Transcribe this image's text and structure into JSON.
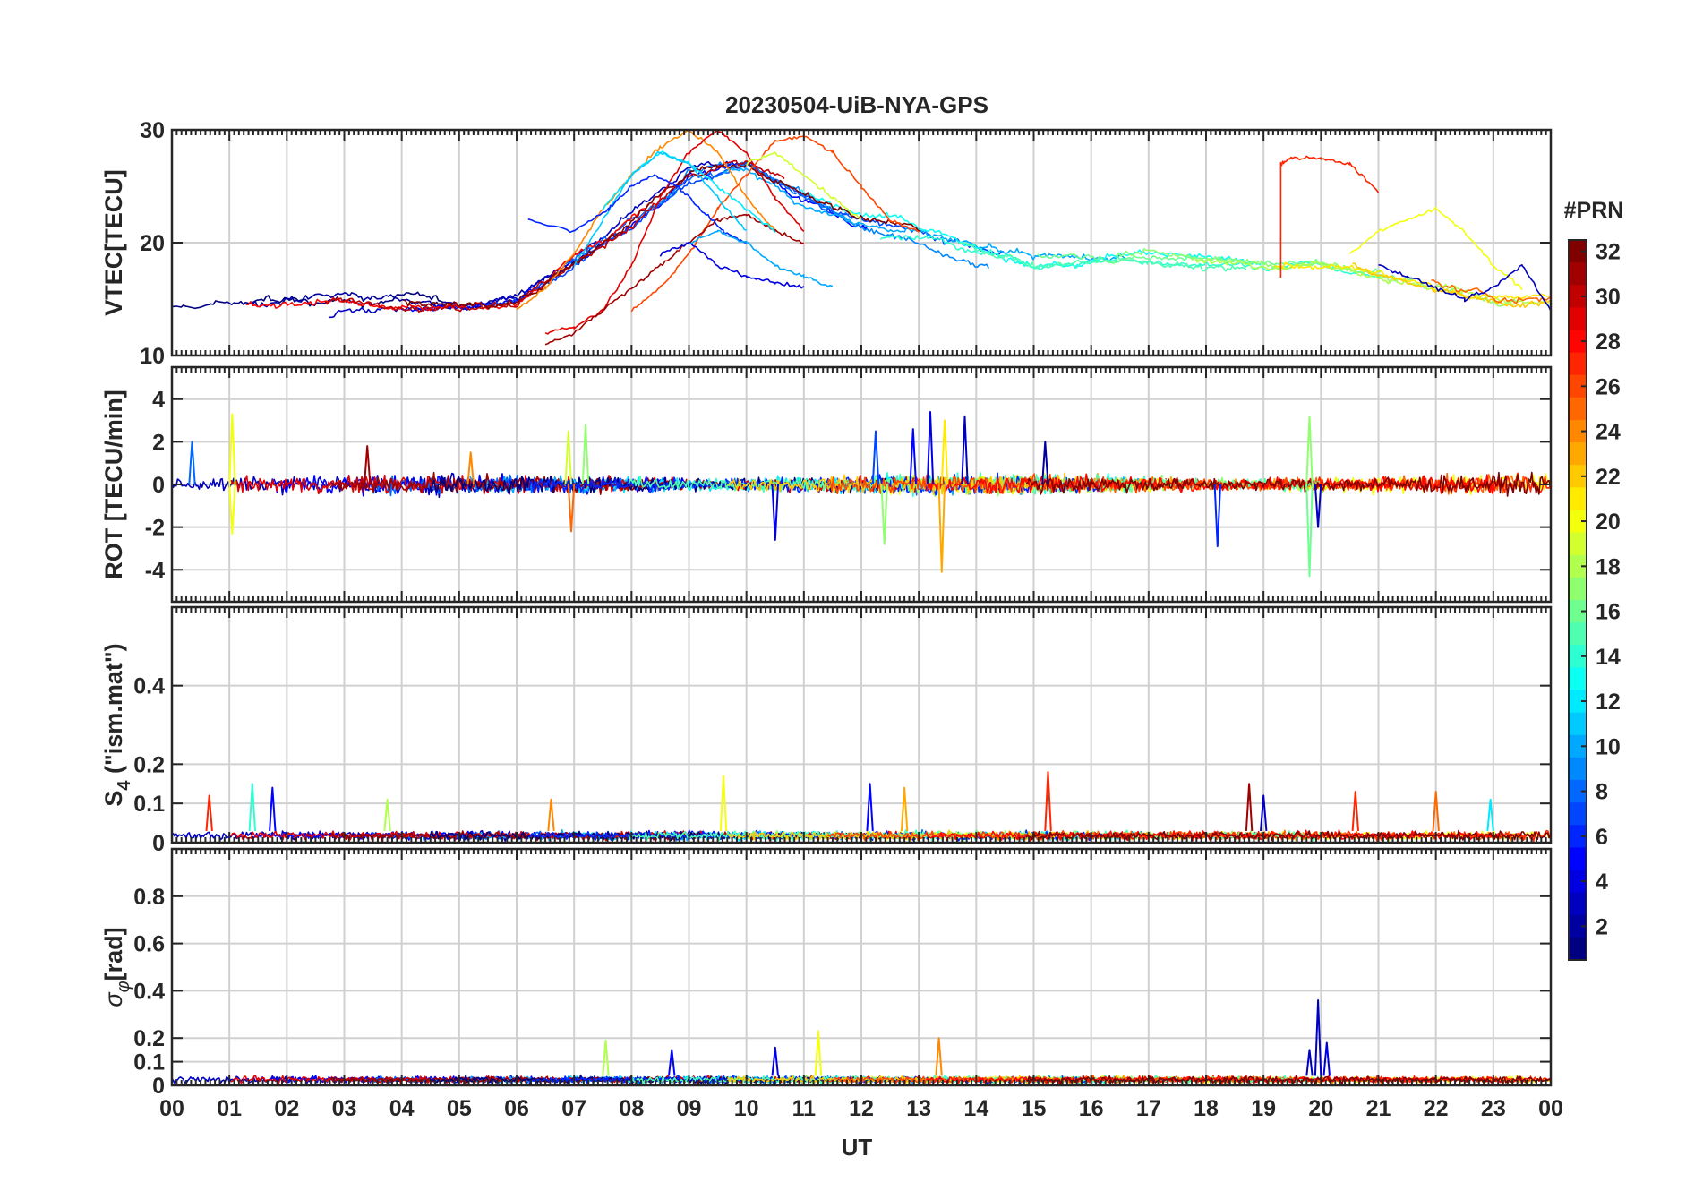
{
  "title": "20230504-UiB-NYA-GPS",
  "colorbar": {
    "label": "#PRN",
    "min": 1,
    "max": 32,
    "ticks": [
      2,
      4,
      6,
      8,
      10,
      12,
      14,
      16,
      18,
      20,
      22,
      24,
      26,
      28,
      30,
      32
    ]
  },
  "chart_data": [
    {
      "type": "line",
      "panel": "vtec",
      "ylabel": "VTEC[TECU]",
      "ylim": [
        10,
        30
      ],
      "yticks": [
        10,
        20,
        30
      ],
      "xlim": [
        0,
        24
      ],
      "baseline": {
        "center": [
          [
            0,
            14
          ],
          [
            3,
            15
          ],
          [
            5,
            14.5
          ],
          [
            6,
            15
          ],
          [
            8,
            22
          ],
          [
            9,
            26
          ],
          [
            10,
            27
          ],
          [
            11,
            24
          ],
          [
            12,
            22
          ],
          [
            13,
            21
          ],
          [
            15,
            18
          ],
          [
            17,
            18.5
          ],
          [
            19,
            18
          ],
          [
            20,
            18
          ],
          [
            21,
            17
          ],
          [
            22,
            16
          ],
          [
            23,
            15
          ],
          [
            24,
            15
          ]
        ],
        "spread": 2.2
      },
      "series": [
        {
          "prn": 24,
          "x": [
            6.0,
            6.5,
            7.0,
            7.5,
            8.0,
            8.5,
            9.0,
            9.5,
            10.0,
            10.5
          ],
          "values": [
            14,
            16,
            19,
            23,
            26,
            28.5,
            30,
            28,
            24,
            21
          ]
        },
        {
          "prn": 29,
          "x": [
            6.5,
            7.0,
            7.5,
            8.0,
            8.5,
            9.0,
            9.5,
            10.0,
            10.5,
            11.0
          ],
          "values": [
            12,
            12.5,
            14,
            18,
            24,
            28,
            30,
            28,
            24,
            21
          ]
        },
        {
          "prn": 26,
          "x": [
            8.0,
            8.5,
            9.0,
            9.5,
            10.0,
            10.5,
            11.0,
            11.5,
            12.0,
            12.5,
            13.0
          ],
          "values": [
            14,
            16,
            19,
            23,
            26,
            29,
            29.5,
            28,
            25,
            22,
            21
          ]
        },
        {
          "prn": 31,
          "x": [
            6.5,
            7.0,
            7.5,
            8.0,
            8.5,
            9.0,
            9.5,
            10.0,
            10.5,
            11.0
          ],
          "values": [
            11,
            12,
            14,
            16,
            18,
            20,
            22,
            22.5,
            21,
            20
          ]
        },
        {
          "prn": 12,
          "x": [
            7.5,
            8.0,
            8.5,
            9.0,
            9.5,
            10.0,
            10.5
          ],
          "values": [
            23,
            26,
            28,
            27,
            25,
            23,
            21
          ]
        },
        {
          "prn": 11,
          "x": [
            7.0,
            7.5,
            8.0,
            8.5,
            9.0,
            9.5,
            10.0
          ],
          "values": [
            18,
            22,
            26,
            28,
            27,
            24,
            21
          ]
        },
        {
          "prn": 6,
          "x": [
            6.2,
            7.0,
            7.6,
            8.0,
            8.4,
            8.8,
            9.2,
            9.6,
            10.0
          ],
          "values": [
            22,
            21,
            23,
            25,
            26,
            25,
            23,
            21,
            20
          ]
        },
        {
          "prn": 4,
          "x": [
            8.5,
            9.0,
            9.5,
            10.0,
            10.5,
            11.0
          ],
          "values": [
            19,
            20,
            18,
            17,
            16.5,
            16
          ]
        },
        {
          "prn": 10,
          "x": [
            9.0,
            9.5,
            10.0,
            10.5,
            11.0,
            11.5
          ],
          "values": [
            20,
            21,
            20,
            18,
            17,
            16
          ]
        },
        {
          "prn": 19,
          "x": [
            10.0,
            10.5,
            11.0,
            11.5,
            12.0
          ],
          "values": [
            27,
            28,
            26,
            24,
            22
          ]
        },
        {
          "prn": 27,
          "x": [
            19.3,
            19.3,
            19.5,
            20.0,
            20.5,
            21.0
          ],
          "values": [
            17,
            27,
            27.5,
            27.5,
            27,
            24.5
          ]
        },
        {
          "prn": 20,
          "x": [
            20.5,
            21.0,
            21.5,
            22.0,
            22.5,
            23.0,
            23.5
          ],
          "values": [
            19,
            21,
            22,
            23,
            21,
            18,
            16
          ]
        },
        {
          "prn": 3,
          "x": [
            21.0,
            21.5,
            22.0,
            22.5,
            23.0,
            23.5,
            24.0
          ],
          "values": [
            18,
            17,
            16,
            15,
            16,
            18,
            14
          ]
        }
      ]
    },
    {
      "type": "line",
      "panel": "rot",
      "ylabel": "ROT [TECU/min]",
      "ylim": [
        -5.5,
        5.5
      ],
      "yticks": [
        -4,
        -2,
        0,
        2,
        4
      ],
      "xlim": [
        0,
        24
      ],
      "noise_amplitude": 0.35,
      "spikes": [
        {
          "x": 0.35,
          "y": 2.0,
          "prn": 8
        },
        {
          "x": 1.05,
          "y": 3.3,
          "prn": 20
        },
        {
          "x": 1.05,
          "y": -2.3,
          "prn": 20
        },
        {
          "x": 3.4,
          "y": 1.8,
          "prn": 31
        },
        {
          "x": 5.2,
          "y": 1.5,
          "prn": 24
        },
        {
          "x": 6.9,
          "y": 2.5,
          "prn": 19
        },
        {
          "x": 6.95,
          "y": -2.2,
          "prn": 25
        },
        {
          "x": 7.2,
          "y": 2.8,
          "prn": 17
        },
        {
          "x": 10.5,
          "y": -2.6,
          "prn": 4
        },
        {
          "x": 12.25,
          "y": 2.5,
          "prn": 7
        },
        {
          "x": 12.4,
          "y": -2.8,
          "prn": 17
        },
        {
          "x": 12.9,
          "y": 2.6,
          "prn": 5
        },
        {
          "x": 13.2,
          "y": 3.4,
          "prn": 4
        },
        {
          "x": 13.4,
          "y": -4.1,
          "prn": 23
        },
        {
          "x": 13.45,
          "y": 3.0,
          "prn": 21
        },
        {
          "x": 13.8,
          "y": 3.2,
          "prn": 3
        },
        {
          "x": 15.2,
          "y": 2.0,
          "prn": 2
        },
        {
          "x": 18.2,
          "y": -2.9,
          "prn": 6
        },
        {
          "x": 19.8,
          "y": 3.2,
          "prn": 17
        },
        {
          "x": 19.8,
          "y": -4.3,
          "prn": 16
        },
        {
          "x": 19.95,
          "y": -2.0,
          "prn": 3
        }
      ]
    },
    {
      "type": "line",
      "panel": "s4",
      "ylabel": "S4 (\"ism.mat\")",
      "ylim": [
        0,
        0.6
      ],
      "yticks": [
        0,
        0.1,
        0.2,
        0.4
      ],
      "xlim": [
        0,
        24
      ],
      "noise_level": 0.03,
      "spikes": [
        {
          "x": 0.65,
          "y": 0.12,
          "prn": 27
        },
        {
          "x": 1.4,
          "y": 0.15,
          "prn": 14
        },
        {
          "x": 1.75,
          "y": 0.14,
          "prn": 5
        },
        {
          "x": 3.75,
          "y": 0.11,
          "prn": 18
        },
        {
          "x": 6.6,
          "y": 0.11,
          "prn": 24
        },
        {
          "x": 9.6,
          "y": 0.17,
          "prn": 20
        },
        {
          "x": 12.15,
          "y": 0.15,
          "prn": 5
        },
        {
          "x": 12.75,
          "y": 0.14,
          "prn": 23
        },
        {
          "x": 15.25,
          "y": 0.18,
          "prn": 27
        },
        {
          "x": 18.75,
          "y": 0.15,
          "prn": 31
        },
        {
          "x": 19.0,
          "y": 0.12,
          "prn": 3
        },
        {
          "x": 20.6,
          "y": 0.13,
          "prn": 27
        },
        {
          "x": 22.0,
          "y": 0.13,
          "prn": 25
        },
        {
          "x": 22.95,
          "y": 0.11,
          "prn": 12
        }
      ]
    },
    {
      "type": "line",
      "panel": "sigma_phi",
      "ylabel": "σφ[rad]",
      "ylim": [
        0,
        1
      ],
      "yticks": [
        0,
        0.1,
        0.2,
        0.4,
        0.6,
        0.8
      ],
      "xlim": [
        0,
        24
      ],
      "noise_level": 0.04,
      "spikes": [
        {
          "x": 7.55,
          "y": 0.19,
          "prn": 18
        },
        {
          "x": 8.7,
          "y": 0.15,
          "prn": 5
        },
        {
          "x": 10.5,
          "y": 0.16,
          "prn": 4
        },
        {
          "x": 11.25,
          "y": 0.23,
          "prn": 20
        },
        {
          "x": 13.35,
          "y": 0.2,
          "prn": 24
        },
        {
          "x": 19.8,
          "y": 0.15,
          "prn": 3
        },
        {
          "x": 19.95,
          "y": 0.36,
          "prn": 3
        },
        {
          "x": 20.1,
          "y": 0.18,
          "prn": 4
        }
      ]
    }
  ],
  "xaxis": {
    "label": "UT",
    "ticks": [
      "00",
      "01",
      "02",
      "03",
      "04",
      "05",
      "06",
      "07",
      "08",
      "09",
      "10",
      "11",
      "12",
      "13",
      "14",
      "15",
      "16",
      "17",
      "18",
      "19",
      "20",
      "21",
      "22",
      "23",
      "00"
    ]
  }
}
